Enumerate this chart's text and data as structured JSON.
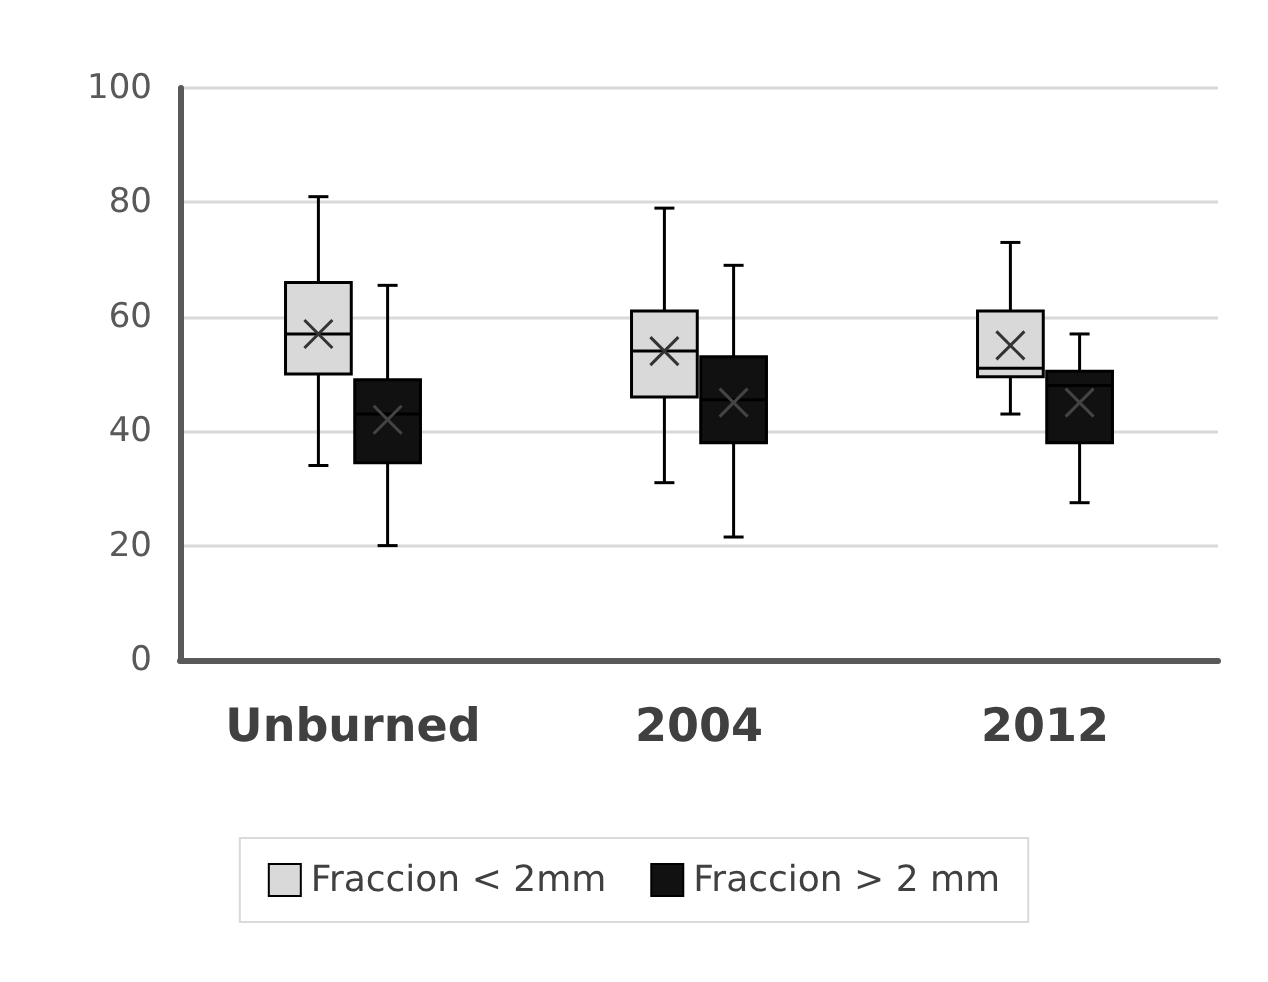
{
  "chart_data": {
    "type": "box",
    "categories": [
      "Unburned",
      "2004",
      "2012"
    ],
    "series": [
      {
        "name": "Fraccion < 2mm",
        "color": "#d9d9d9",
        "boxes": [
          {
            "low": 34,
            "q1": 50,
            "median": 57,
            "q3": 66,
            "high": 81,
            "mean": 57
          },
          {
            "low": 31,
            "q1": 46,
            "median": 54,
            "q3": 61,
            "high": 79,
            "mean": 54
          },
          {
            "low": 43,
            "q1": 49.5,
            "median": 51,
            "q3": 61,
            "high": 73,
            "mean": 55
          }
        ]
      },
      {
        "name": "Fraccion > 2 mm",
        "color": "#111111",
        "boxes": [
          {
            "low": 20,
            "q1": 34.5,
            "median": 43,
            "q3": 49,
            "high": 65.5,
            "mean": 42
          },
          {
            "low": 21.5,
            "q1": 38,
            "median": 45.5,
            "q3": 53,
            "high": 69,
            "mean": 45
          },
          {
            "low": 27.5,
            "q1": 38,
            "median": 48,
            "q3": 50.5,
            "high": 57,
            "mean": 45
          }
        ]
      }
    ],
    "ylim": [
      0,
      100
    ],
    "yticks": [
      0,
      20,
      40,
      60,
      80,
      100
    ],
    "grid": "y",
    "legend": "bottom"
  }
}
